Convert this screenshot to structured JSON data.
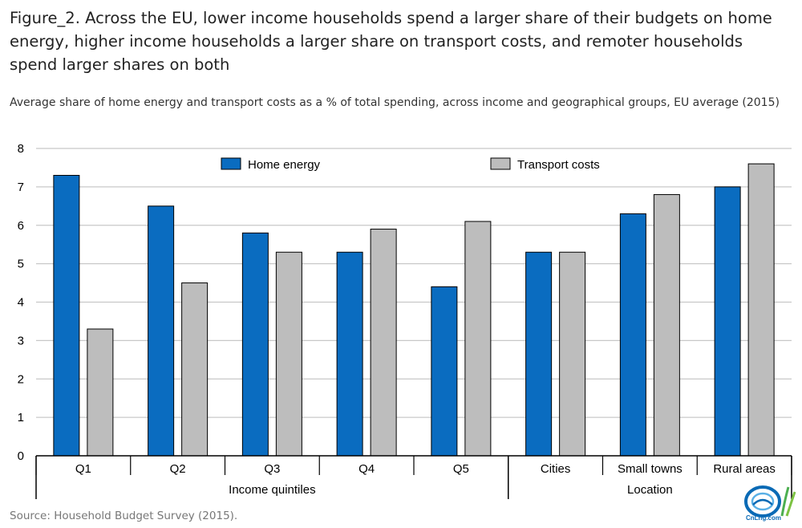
{
  "figure": {
    "title": "Figure_2. Across the EU, lower income households spend a larger share of their budgets on home energy, higher income households a larger share on transport costs, and remoter households spend larger shares on both",
    "subtitle": "Average share of home energy and transport costs as a % of total spending, across income and geographical groups, EU average (2015)",
    "source": "Source: Household Budget Survey (2015).",
    "logo_text": "CnLng.com"
  },
  "colors": {
    "home_energy": "#0a6cc0",
    "transport_costs": "#bdbdbd",
    "grid": "#c8c8c8",
    "axis": "#000000"
  },
  "chart_data": {
    "type": "bar",
    "categories": [
      "Q1",
      "Q2",
      "Q3",
      "Q4",
      "Q5",
      "Cities",
      "Small towns",
      "Rural areas"
    ],
    "groups": [
      {
        "label": "Income quintiles",
        "categories": [
          "Q1",
          "Q2",
          "Q3",
          "Q4",
          "Q5"
        ]
      },
      {
        "label": "Location",
        "categories": [
          "Cities",
          "Small towns",
          "Rural areas"
        ]
      }
    ],
    "series": [
      {
        "name": "Home energy",
        "values": [
          7.3,
          6.5,
          5.8,
          5.3,
          4.4,
          5.3,
          6.3,
          7.0
        ]
      },
      {
        "name": "Transport costs",
        "values": [
          3.3,
          4.5,
          5.3,
          5.9,
          6.1,
          5.3,
          6.8,
          7.6
        ]
      }
    ],
    "ylim": [
      0,
      8
    ],
    "yticks": [
      "0",
      "1",
      "2",
      "3",
      "4",
      "5",
      "6",
      "7",
      "8"
    ],
    "grid": true,
    "legend_position": "top"
  }
}
